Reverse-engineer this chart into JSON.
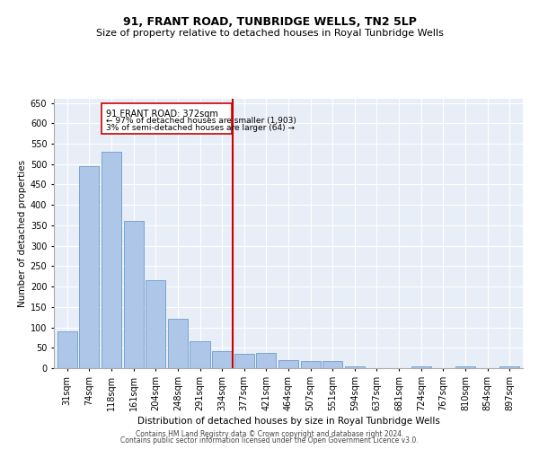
{
  "title": "91, FRANT ROAD, TUNBRIDGE WELLS, TN2 5LP",
  "subtitle": "Size of property relative to detached houses in Royal Tunbridge Wells",
  "xlabel": "Distribution of detached houses by size in Royal Tunbridge Wells",
  "ylabel": "Number of detached properties",
  "footer_line1": "Contains HM Land Registry data © Crown copyright and database right 2024.",
  "footer_line2": "Contains public sector information licensed under the Open Government Licence v3.0.",
  "annotation_title": "91 FRANT ROAD: 372sqm",
  "annotation_line2": "← 97% of detached houses are smaller (1,903)",
  "annotation_line3": "3% of semi-detached houses are larger (64) →",
  "bar_categories": [
    "31sqm",
    "74sqm",
    "118sqm",
    "161sqm",
    "204sqm",
    "248sqm",
    "291sqm",
    "334sqm",
    "377sqm",
    "421sqm",
    "464sqm",
    "507sqm",
    "551sqm",
    "594sqm",
    "637sqm",
    "681sqm",
    "724sqm",
    "767sqm",
    "810sqm",
    "854sqm",
    "897sqm"
  ],
  "bar_values": [
    90,
    495,
    530,
    360,
    215,
    120,
    65,
    42,
    35,
    37,
    20,
    18,
    18,
    5,
    0,
    0,
    5,
    0,
    5,
    0,
    5
  ],
  "bar_color": "#aec6e8",
  "bar_edgecolor": "#5a8fc2",
  "vline_x_index": 7.5,
  "vline_color": "#cc0000",
  "annotation_box_color": "#cc0000",
  "bg_color": "#e8eef7",
  "ylim": [
    0,
    660
  ],
  "yticks": [
    0,
    50,
    100,
    150,
    200,
    250,
    300,
    350,
    400,
    450,
    500,
    550,
    600,
    650
  ],
  "title_fontsize": 9,
  "subtitle_fontsize": 8,
  "ylabel_fontsize": 7.5,
  "xlabel_fontsize": 7.5,
  "tick_fontsize": 7,
  "footer_fontsize": 5.5
}
